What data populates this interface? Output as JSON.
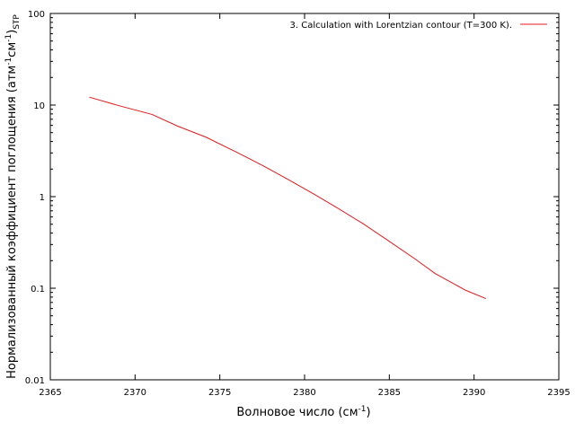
{
  "chart_data": {
    "type": "line",
    "title": "",
    "xlabel": "Волновое число (см",
    "xlabel_sup": "-1",
    "xlabel_end": ")",
    "ylabel_parts": {
      "a": "Нормализованный коэффициент поглощения (атм",
      "sup1": "-1",
      "b": "см",
      "sup2": "-1",
      "c": ")",
      "sub": "STP"
    },
    "xlim": [
      2365,
      2395
    ],
    "ylim": [
      0.01,
      100
    ],
    "y_scale": "log",
    "grid": false,
    "legend_position": "top-right",
    "x_ticks": [
      {
        "value": 2365,
        "label": "2365"
      },
      {
        "value": 2370,
        "label": "2370"
      },
      {
        "value": 2375,
        "label": "2375"
      },
      {
        "value": 2380,
        "label": "2380"
      },
      {
        "value": 2385,
        "label": "2385"
      },
      {
        "value": 2390,
        "label": "2390"
      },
      {
        "value": 2395,
        "label": "2395"
      }
    ],
    "y_ticks": [
      {
        "value": 0.01,
        "label": "0.01"
      },
      {
        "value": 0.1,
        "label": "0.1"
      },
      {
        "value": 1,
        "label": "1"
      },
      {
        "value": 10,
        "label": "10"
      },
      {
        "value": 100,
        "label": "100"
      }
    ],
    "series": [
      {
        "name": "3. Calculation with Lorentzian contour (T=300 K).",
        "color": "#e41a1c",
        "x": [
          2367.3,
          2369,
          2371,
          2372.5,
          2374.2,
          2376,
          2377.5,
          2379,
          2380.5,
          2382,
          2383.5,
          2385,
          2386.5,
          2387.7,
          2389.5,
          2390.7
        ],
        "y": [
          12.2,
          9.9,
          7.9,
          5.9,
          4.45,
          3.05,
          2.2,
          1.55,
          1.08,
          0.74,
          0.5,
          0.325,
          0.21,
          0.145,
          0.095,
          0.077
        ]
      }
    ]
  }
}
